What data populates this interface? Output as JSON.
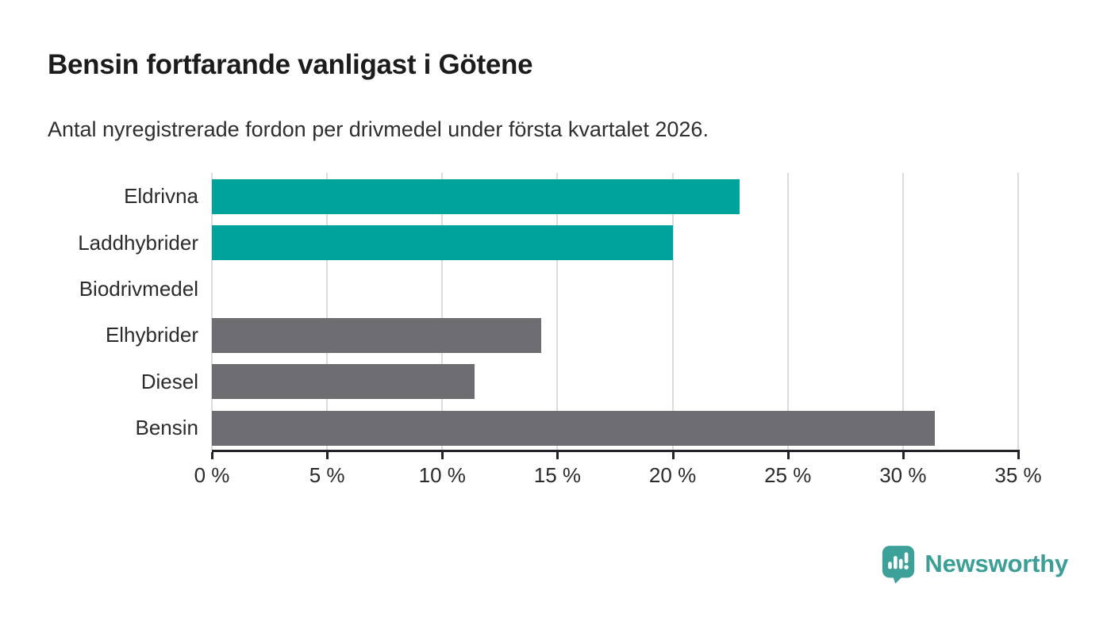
{
  "header": {
    "title": "Bensin fortfarande vanligast i Götene",
    "subtitle": "Antal nyregistrerade fordon per drivmedel under första kvartalet 2026."
  },
  "chart_data": {
    "type": "bar",
    "orientation": "horizontal",
    "title": "Bensin fortfarande vanligast i Götene",
    "subtitle": "Antal nyregistrerade fordon per drivmedel under första kvartalet 2026.",
    "categories": [
      "Eldrivna",
      "Laddhybrider",
      "Biodrivmedel",
      "Elhybrider",
      "Diesel",
      "Bensin"
    ],
    "values": [
      22.9,
      20.0,
      0,
      14.3,
      11.4,
      31.4
    ],
    "unit": "%",
    "bar_colors": [
      "#00a39b",
      "#00a39b",
      "#6e6e72",
      "#6e6e72",
      "#6e6e72",
      "#6e6e72"
    ],
    "xlim": [
      0,
      35
    ],
    "x_tick_values": [
      0,
      5,
      10,
      15,
      20,
      25,
      30,
      35
    ],
    "x_tick_labels": [
      "0 %",
      "5 %",
      "10 %",
      "15 %",
      "20 %",
      "25 %",
      "30 %",
      "35 %"
    ],
    "grid": true,
    "legend": "none"
  },
  "colors": {
    "accent_teal": "#00a39b",
    "neutral_gray": "#6e6e72",
    "gridline": "#dcdcde",
    "axis": "#232329",
    "brand_teal": "#3b9e97"
  },
  "branding": {
    "logo_text": "Newsworthy",
    "logo_icon": "bar-chart-speech-bubble-icon"
  }
}
